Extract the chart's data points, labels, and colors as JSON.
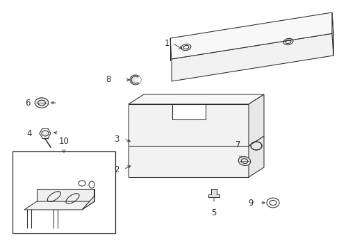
{
  "bg_color": "#ffffff",
  "line_color": "#2a2a2a",
  "figsize": [
    4.89,
    3.6
  ],
  "dpi": 100,
  "lw": 0.75
}
